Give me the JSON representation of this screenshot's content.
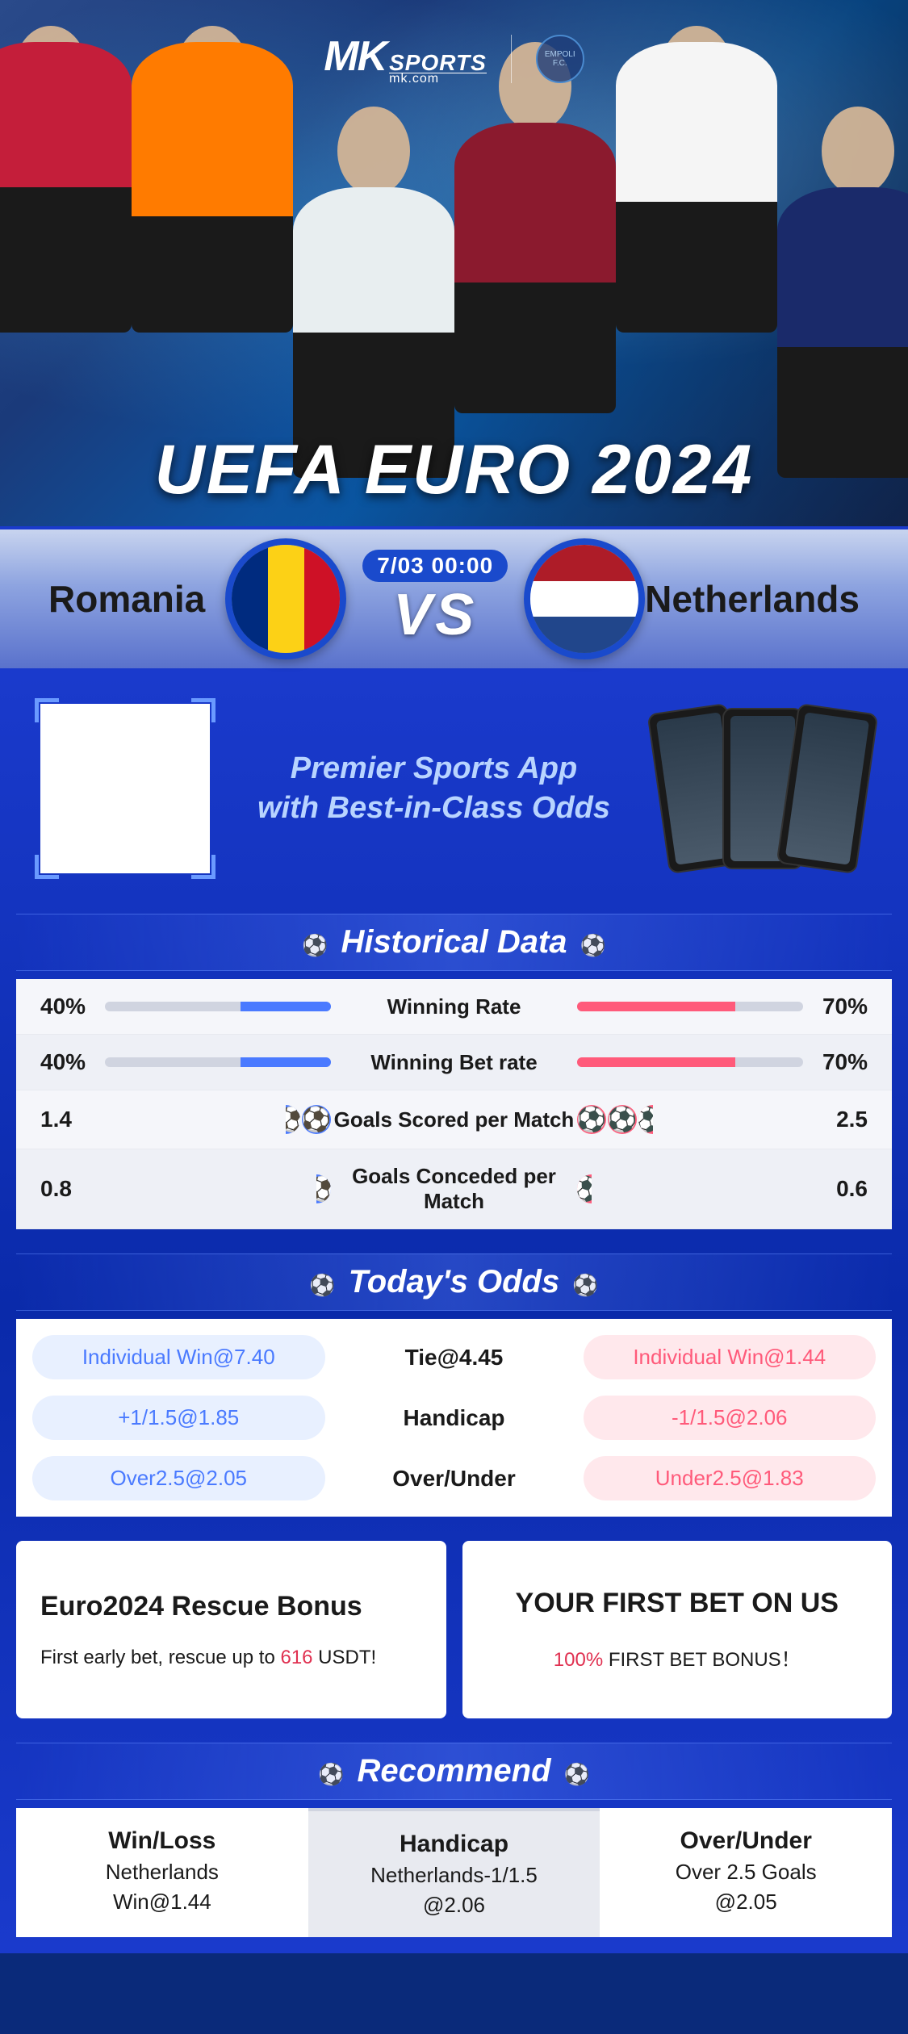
{
  "brand": {
    "logo_prefix": "MK",
    "logo_name": "SPORTS",
    "logo_url": "mk.com",
    "club_badge_label": "EMPOLI F.C."
  },
  "hero": {
    "title": "UEFA EURO 2024"
  },
  "match": {
    "team_left": "Romania",
    "team_right": "Netherlands",
    "datetime": "7/03 00:00",
    "vs": "VS",
    "flag_left_colors": [
      "#002b7f",
      "#fcd116",
      "#ce1126"
    ],
    "flag_right_colors": [
      "#ae1c28",
      "#ffffff",
      "#21468b"
    ]
  },
  "promo": {
    "line1": "Premier Sports App",
    "line2": "with Best-in-Class Odds"
  },
  "sections": {
    "historical": "Historical Data",
    "odds": "Today's Odds",
    "recommend": "Recommend"
  },
  "historical": {
    "rows": [
      {
        "label": "Winning Rate",
        "left_val": "40%",
        "right_val": "70%",
        "type": "bar",
        "left_pct": 40,
        "right_pct": 70
      },
      {
        "label": "Winning Bet rate",
        "left_val": "40%",
        "right_val": "70%",
        "type": "bar",
        "left_pct": 40,
        "right_pct": 70
      },
      {
        "label": "Goals Scored per Match",
        "left_val": "1.4",
        "right_val": "2.5",
        "type": "balls",
        "left_balls": 1.4,
        "right_balls": 2.5
      },
      {
        "label": "Goals Conceded per Match",
        "left_val": "0.8",
        "right_val": "0.6",
        "type": "balls",
        "left_balls": 0.8,
        "right_balls": 0.6
      }
    ],
    "colors": {
      "left": "#4a7aff",
      "right": "#ff5a7a",
      "track": "#d0d4e0"
    }
  },
  "odds": {
    "rows": [
      {
        "left": "Individual Win@7.40",
        "center": "Tie@4.45",
        "right": "Individual Win@1.44"
      },
      {
        "left": "+1/1.5@1.85",
        "center": "Handicap",
        "right": "-1/1.5@2.06"
      },
      {
        "left": "Over2.5@2.05",
        "center": "Over/Under",
        "right": "Under2.5@1.83"
      }
    ],
    "colors": {
      "left_bg": "#e8f0ff",
      "left_fg": "#4a7aff",
      "right_bg": "#ffe8ec",
      "right_fg": "#ff5a7a"
    }
  },
  "bonuses": [
    {
      "title": "Euro2024 Rescue Bonus",
      "text_pre": "First early bet, rescue up to ",
      "text_highlight": "616",
      "text_post": " USDT!",
      "centered": false
    },
    {
      "title": "YOUR FIRST BET ON US",
      "text_pre": "",
      "text_highlight": "100%",
      "text_post": " FIRST BET BONUS！",
      "centered": true
    }
  ],
  "recommend": {
    "tabs": [
      {
        "title": "Win/Loss",
        "sub": "Netherlands",
        "odds": "Win@1.44",
        "active": false
      },
      {
        "title": "Handicap",
        "sub": "Netherlands-1/1.5",
        "odds": "@2.06",
        "active": true
      },
      {
        "title": "Over/Under",
        "sub": "Over 2.5 Goals",
        "odds": "@2.05",
        "active": false
      }
    ]
  },
  "theme": {
    "primary": "#1a3acc",
    "accent_blue": "#4a7aff",
    "accent_red": "#ff5a7a",
    "bg_light": "#f5f6fa"
  }
}
